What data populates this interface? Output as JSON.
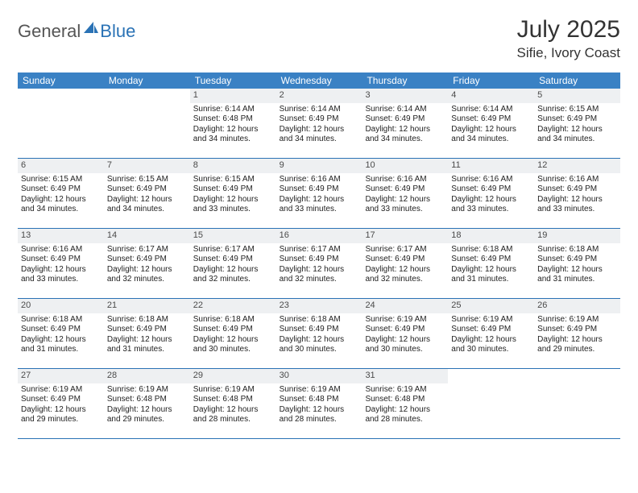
{
  "brand": {
    "general": "General",
    "blue": "Blue"
  },
  "header": {
    "month": "July 2025",
    "location": "Sifie, Ivory Coast"
  },
  "colors": {
    "header_bg": "#3a81c4",
    "accent": "#2a72b5",
    "daynum_bg": "#eef0f2",
    "text": "#222222"
  },
  "dayNames": [
    "Sunday",
    "Monday",
    "Tuesday",
    "Wednesday",
    "Thursday",
    "Friday",
    "Saturday"
  ],
  "weeks": [
    [
      {
        "day": "",
        "sunrise": "",
        "sunset": "",
        "daylight": ""
      },
      {
        "day": "",
        "sunrise": "",
        "sunset": "",
        "daylight": ""
      },
      {
        "day": "1",
        "sunrise": "Sunrise: 6:14 AM",
        "sunset": "Sunset: 6:48 PM",
        "daylight": "Daylight: 12 hours and 34 minutes."
      },
      {
        "day": "2",
        "sunrise": "Sunrise: 6:14 AM",
        "sunset": "Sunset: 6:49 PM",
        "daylight": "Daylight: 12 hours and 34 minutes."
      },
      {
        "day": "3",
        "sunrise": "Sunrise: 6:14 AM",
        "sunset": "Sunset: 6:49 PM",
        "daylight": "Daylight: 12 hours and 34 minutes."
      },
      {
        "day": "4",
        "sunrise": "Sunrise: 6:14 AM",
        "sunset": "Sunset: 6:49 PM",
        "daylight": "Daylight: 12 hours and 34 minutes."
      },
      {
        "day": "5",
        "sunrise": "Sunrise: 6:15 AM",
        "sunset": "Sunset: 6:49 PM",
        "daylight": "Daylight: 12 hours and 34 minutes."
      }
    ],
    [
      {
        "day": "6",
        "sunrise": "Sunrise: 6:15 AM",
        "sunset": "Sunset: 6:49 PM",
        "daylight": "Daylight: 12 hours and 34 minutes."
      },
      {
        "day": "7",
        "sunrise": "Sunrise: 6:15 AM",
        "sunset": "Sunset: 6:49 PM",
        "daylight": "Daylight: 12 hours and 34 minutes."
      },
      {
        "day": "8",
        "sunrise": "Sunrise: 6:15 AM",
        "sunset": "Sunset: 6:49 PM",
        "daylight": "Daylight: 12 hours and 33 minutes."
      },
      {
        "day": "9",
        "sunrise": "Sunrise: 6:16 AM",
        "sunset": "Sunset: 6:49 PM",
        "daylight": "Daylight: 12 hours and 33 minutes."
      },
      {
        "day": "10",
        "sunrise": "Sunrise: 6:16 AM",
        "sunset": "Sunset: 6:49 PM",
        "daylight": "Daylight: 12 hours and 33 minutes."
      },
      {
        "day": "11",
        "sunrise": "Sunrise: 6:16 AM",
        "sunset": "Sunset: 6:49 PM",
        "daylight": "Daylight: 12 hours and 33 minutes."
      },
      {
        "day": "12",
        "sunrise": "Sunrise: 6:16 AM",
        "sunset": "Sunset: 6:49 PM",
        "daylight": "Daylight: 12 hours and 33 minutes."
      }
    ],
    [
      {
        "day": "13",
        "sunrise": "Sunrise: 6:16 AM",
        "sunset": "Sunset: 6:49 PM",
        "daylight": "Daylight: 12 hours and 33 minutes."
      },
      {
        "day": "14",
        "sunrise": "Sunrise: 6:17 AM",
        "sunset": "Sunset: 6:49 PM",
        "daylight": "Daylight: 12 hours and 32 minutes."
      },
      {
        "day": "15",
        "sunrise": "Sunrise: 6:17 AM",
        "sunset": "Sunset: 6:49 PM",
        "daylight": "Daylight: 12 hours and 32 minutes."
      },
      {
        "day": "16",
        "sunrise": "Sunrise: 6:17 AM",
        "sunset": "Sunset: 6:49 PM",
        "daylight": "Daylight: 12 hours and 32 minutes."
      },
      {
        "day": "17",
        "sunrise": "Sunrise: 6:17 AM",
        "sunset": "Sunset: 6:49 PM",
        "daylight": "Daylight: 12 hours and 32 minutes."
      },
      {
        "day": "18",
        "sunrise": "Sunrise: 6:18 AM",
        "sunset": "Sunset: 6:49 PM",
        "daylight": "Daylight: 12 hours and 31 minutes."
      },
      {
        "day": "19",
        "sunrise": "Sunrise: 6:18 AM",
        "sunset": "Sunset: 6:49 PM",
        "daylight": "Daylight: 12 hours and 31 minutes."
      }
    ],
    [
      {
        "day": "20",
        "sunrise": "Sunrise: 6:18 AM",
        "sunset": "Sunset: 6:49 PM",
        "daylight": "Daylight: 12 hours and 31 minutes."
      },
      {
        "day": "21",
        "sunrise": "Sunrise: 6:18 AM",
        "sunset": "Sunset: 6:49 PM",
        "daylight": "Daylight: 12 hours and 31 minutes."
      },
      {
        "day": "22",
        "sunrise": "Sunrise: 6:18 AM",
        "sunset": "Sunset: 6:49 PM",
        "daylight": "Daylight: 12 hours and 30 minutes."
      },
      {
        "day": "23",
        "sunrise": "Sunrise: 6:18 AM",
        "sunset": "Sunset: 6:49 PM",
        "daylight": "Daylight: 12 hours and 30 minutes."
      },
      {
        "day": "24",
        "sunrise": "Sunrise: 6:19 AM",
        "sunset": "Sunset: 6:49 PM",
        "daylight": "Daylight: 12 hours and 30 minutes."
      },
      {
        "day": "25",
        "sunrise": "Sunrise: 6:19 AM",
        "sunset": "Sunset: 6:49 PM",
        "daylight": "Daylight: 12 hours and 30 minutes."
      },
      {
        "day": "26",
        "sunrise": "Sunrise: 6:19 AM",
        "sunset": "Sunset: 6:49 PM",
        "daylight": "Daylight: 12 hours and 29 minutes."
      }
    ],
    [
      {
        "day": "27",
        "sunrise": "Sunrise: 6:19 AM",
        "sunset": "Sunset: 6:49 PM",
        "daylight": "Daylight: 12 hours and 29 minutes."
      },
      {
        "day": "28",
        "sunrise": "Sunrise: 6:19 AM",
        "sunset": "Sunset: 6:48 PM",
        "daylight": "Daylight: 12 hours and 29 minutes."
      },
      {
        "day": "29",
        "sunrise": "Sunrise: 6:19 AM",
        "sunset": "Sunset: 6:48 PM",
        "daylight": "Daylight: 12 hours and 28 minutes."
      },
      {
        "day": "30",
        "sunrise": "Sunrise: 6:19 AM",
        "sunset": "Sunset: 6:48 PM",
        "daylight": "Daylight: 12 hours and 28 minutes."
      },
      {
        "day": "31",
        "sunrise": "Sunrise: 6:19 AM",
        "sunset": "Sunset: 6:48 PM",
        "daylight": "Daylight: 12 hours and 28 minutes."
      },
      {
        "day": "",
        "sunrise": "",
        "sunset": "",
        "daylight": ""
      },
      {
        "day": "",
        "sunrise": "",
        "sunset": "",
        "daylight": ""
      }
    ]
  ]
}
